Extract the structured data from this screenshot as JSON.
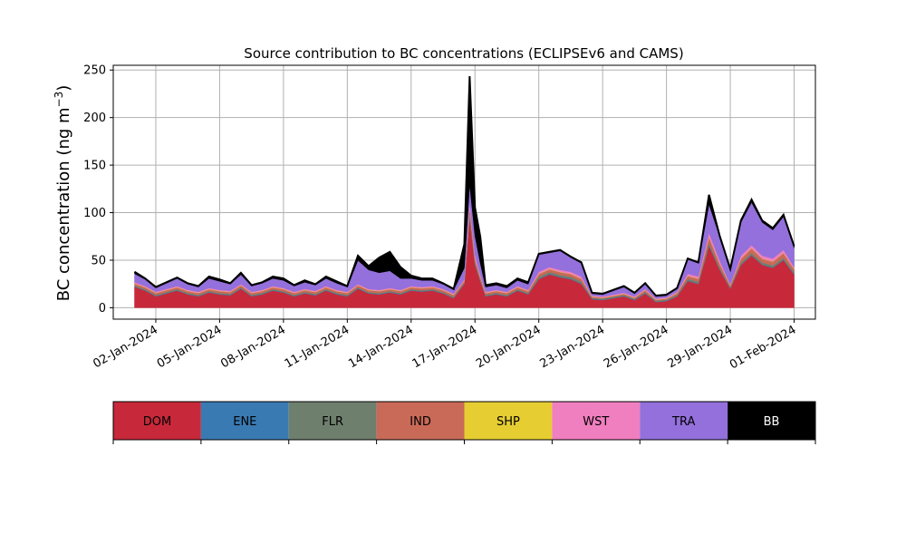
{
  "chart_data": {
    "type": "area",
    "title": "Source contribution to BC concentrations (ECLIPSEv6 and CAMS)",
    "ylabel_main": "BC concentration (ng m",
    "ylabel_sup": "−3",
    "ylabel_close": ")",
    "xlabel": "",
    "grid": true,
    "stacked": true,
    "ylim": [
      -12,
      255
    ],
    "xlim": [
      "2023-12-31",
      "2024-02-02"
    ],
    "y_ticks": [
      0,
      50,
      100,
      150,
      200,
      250
    ],
    "x_ticks": [
      "02-Jan-2024",
      "05-Jan-2024",
      "08-Jan-2024",
      "11-Jan-2024",
      "14-Jan-2024",
      "17-Jan-2024",
      "20-Jan-2024",
      "23-Jan-2024",
      "26-Jan-2024",
      "29-Jan-2024",
      "01-Feb-2024"
    ],
    "legend_position": "below",
    "x": [
      "2024-01-01",
      "2024-01-01 12:00",
      "2024-01-02",
      "2024-01-02 12:00",
      "2024-01-03",
      "2024-01-03 12:00",
      "2024-01-04",
      "2024-01-04 12:00",
      "2024-01-05",
      "2024-01-05 12:00",
      "2024-01-06",
      "2024-01-06 12:00",
      "2024-01-07",
      "2024-01-07 12:00",
      "2024-01-08",
      "2024-01-08 12:00",
      "2024-01-09",
      "2024-01-09 12:00",
      "2024-01-10",
      "2024-01-10 12:00",
      "2024-01-11",
      "2024-01-11 12:00",
      "2024-01-12",
      "2024-01-12 12:00",
      "2024-01-13",
      "2024-01-13 12:00",
      "2024-01-14",
      "2024-01-14 12:00",
      "2024-01-15",
      "2024-01-15 12:00",
      "2024-01-16",
      "2024-01-16 12:00",
      "2024-01-16 18:00",
      "2024-01-17",
      "2024-01-17 06:00",
      "2024-01-17 12:00",
      "2024-01-18",
      "2024-01-18 12:00",
      "2024-01-19",
      "2024-01-19 12:00",
      "2024-01-20",
      "2024-01-20 12:00",
      "2024-01-21",
      "2024-01-21 12:00",
      "2024-01-22",
      "2024-01-22 12:00",
      "2024-01-23",
      "2024-01-23 12:00",
      "2024-01-24",
      "2024-01-24 12:00",
      "2024-01-25",
      "2024-01-25 12:00",
      "2024-01-26",
      "2024-01-26 12:00",
      "2024-01-27",
      "2024-01-27 12:00",
      "2024-01-28",
      "2024-01-28 12:00",
      "2024-01-29",
      "2024-01-29 12:00",
      "2024-01-30",
      "2024-01-30 12:00",
      "2024-01-31",
      "2024-01-31 12:00",
      "2024-02-01"
    ],
    "series": [
      {
        "name": "DOM",
        "color": "#c7293a",
        "values": [
          22,
          18,
          12,
          15,
          18,
          14,
          12,
          16,
          14,
          13,
          20,
          12,
          14,
          18,
          16,
          12,
          15,
          13,
          18,
          14,
          12,
          20,
          15,
          14,
          16,
          14,
          18,
          17,
          18,
          15,
          10,
          25,
          95,
          45,
          28,
          12,
          14,
          12,
          18,
          14,
          30,
          35,
          32,
          30,
          25,
          9,
          8,
          10,
          12,
          8,
          15,
          6,
          7,
          12,
          28,
          25,
          65,
          40,
          20,
          45,
          55,
          45,
          42,
          50,
          35
        ]
      },
      {
        "name": "ENE",
        "color": "#3a7ab3",
        "values": [
          0.5,
          0.5,
          0.5,
          0.5,
          0.5,
          0.5,
          0.5,
          0.5,
          0.5,
          0.5,
          0.5,
          0.5,
          0.5,
          0.5,
          0.5,
          0.5,
          0.5,
          0.5,
          0.5,
          0.5,
          0.5,
          0.5,
          0.5,
          0.5,
          0.5,
          0.5,
          0.5,
          0.5,
          0.5,
          0.5,
          0.5,
          0.5,
          1,
          1,
          0.5,
          0.5,
          0.5,
          0.5,
          0.5,
          0.5,
          0.5,
          0.5,
          0.5,
          0.5,
          0.5,
          0.5,
          0.5,
          0.5,
          0.5,
          0.5,
          0.5,
          0.5,
          0.5,
          0.5,
          0.5,
          0.5,
          0.5,
          0.5,
          0.5,
          0.5,
          0.5,
          0.5,
          0.5,
          0.5,
          0.5
        ]
      },
      {
        "name": "FLR",
        "color": "#6e7f6e",
        "values": [
          1,
          1,
          1,
          1,
          1,
          1,
          1,
          1,
          1,
          1,
          1,
          1,
          1,
          1,
          1,
          1,
          1,
          1,
          1,
          1,
          1,
          1,
          1,
          1,
          1,
          1,
          1,
          1,
          1,
          1,
          1,
          1,
          3,
          2,
          1,
          1,
          1,
          1,
          1,
          1,
          2,
          2,
          2,
          2,
          2,
          1,
          1,
          1,
          1,
          1,
          1,
          1,
          1,
          1,
          2,
          2,
          3,
          2,
          1,
          2,
          2,
          2,
          2,
          2,
          2
        ]
      },
      {
        "name": "IND",
        "color": "#c96a58",
        "values": [
          2,
          2,
          2,
          2,
          2,
          2,
          2,
          2,
          2,
          2,
          2,
          2,
          2,
          2,
          2,
          2,
          2,
          2,
          2,
          2,
          2,
          2,
          2,
          2,
          2,
          2,
          2,
          2,
          2,
          2,
          2,
          2,
          8,
          4,
          3,
          2,
          2,
          2,
          2,
          2,
          3,
          3,
          3,
          3,
          3,
          1,
          1,
          1,
          1,
          1,
          2,
          1,
          1,
          2,
          3,
          3,
          6,
          4,
          2,
          4,
          5,
          4,
          4,
          5,
          3
        ]
      },
      {
        "name": "SHP",
        "color": "#e6cd32",
        "values": [
          0.3,
          0.3,
          0.3,
          0.3,
          0.3,
          0.3,
          0.3,
          0.3,
          0.3,
          0.3,
          0.3,
          0.3,
          0.3,
          0.3,
          0.3,
          0.3,
          0.3,
          0.3,
          0.3,
          0.3,
          0.3,
          0.3,
          0.3,
          0.3,
          0.3,
          0.3,
          0.3,
          0.3,
          0.3,
          0.3,
          0.3,
          0.3,
          0.5,
          0.5,
          0.3,
          0.3,
          0.3,
          0.3,
          0.3,
          0.3,
          0.3,
          0.3,
          0.3,
          0.3,
          0.3,
          0.3,
          0.3,
          0.3,
          0.3,
          0.3,
          0.3,
          0.3,
          0.3,
          0.3,
          0.3,
          0.3,
          0.3,
          0.3,
          0.3,
          0.3,
          0.3,
          0.3,
          0.3,
          0.3,
          0.3
        ]
      },
      {
        "name": "WST",
        "color": "#f07fbf",
        "values": [
          1,
          1,
          1,
          1,
          1,
          1,
          1,
          1,
          1,
          1,
          1,
          1,
          1,
          1,
          1,
          1,
          1,
          1,
          1,
          1,
          1,
          1,
          1,
          1,
          1,
          1,
          1,
          1,
          1,
          1,
          1,
          1,
          4,
          3,
          2,
          1,
          1,
          1,
          1,
          1,
          2,
          2,
          2,
          2,
          2,
          1,
          1,
          1,
          1,
          1,
          1,
          1,
          1,
          1,
          2,
          2,
          4,
          3,
          1,
          3,
          3,
          3,
          3,
          3,
          2
        ]
      },
      {
        "name": "TRA",
        "color": "#9370db",
        "values": [
          9,
          7,
          4,
          6,
          8,
          6,
          5,
          10,
          9,
          7,
          10,
          6,
          7,
          8,
          8,
          6,
          7,
          6,
          8,
          7,
          5,
          25,
          20,
          18,
          18,
          12,
          8,
          7,
          6,
          5,
          4,
          12,
          18,
          20,
          12,
          5,
          5,
          4,
          6,
          6,
          18,
          15,
          20,
          15,
          14,
          2,
          2,
          4,
          6,
          3,
          5,
          2,
          2,
          3,
          15,
          14,
          30,
          25,
          15,
          35,
          45,
          35,
          30,
          35,
          20
        ]
      },
      {
        "name": "BB",
        "color": "#000000",
        "values": [
          2,
          1,
          1,
          1,
          1,
          1,
          1,
          2,
          2,
          1,
          2,
          1,
          1,
          2,
          2,
          1,
          2,
          1,
          2,
          2,
          1,
          5,
          4,
          16,
          20,
          12,
          3,
          2,
          2,
          1,
          1,
          25,
          114,
          30,
          28,
          2,
          2,
          2,
          2,
          2,
          1,
          1,
          1,
          1,
          1,
          1,
          1,
          1,
          1,
          1,
          1,
          1,
          1,
          1,
          1,
          1,
          10,
          1,
          1,
          2,
          3,
          2,
          2,
          2,
          2
        ]
      }
    ]
  }
}
